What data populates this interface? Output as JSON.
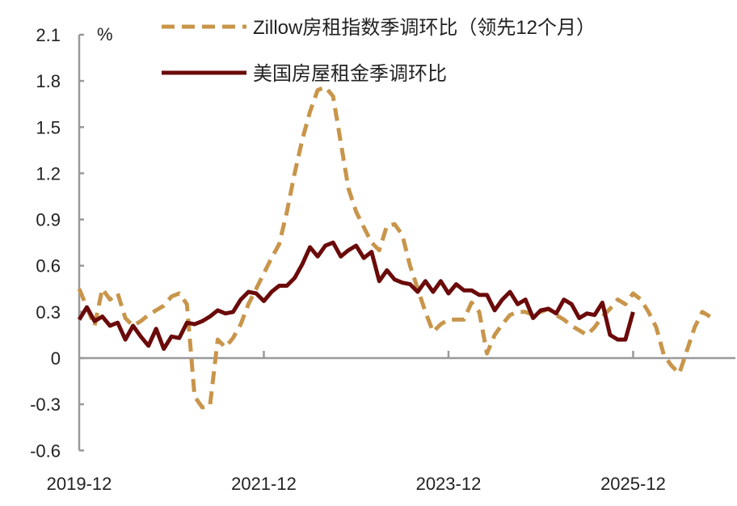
{
  "chart_data": {
    "type": "line",
    "unit_label": "%",
    "ylim": [
      -0.6,
      2.1
    ],
    "yticks": [
      "2.1",
      "1.8",
      "1.5",
      "1.2",
      "0.9",
      "0.6",
      "0.3",
      "0",
      "-0.3",
      "-0.6"
    ],
    "ytick_values": [
      2.1,
      1.8,
      1.5,
      1.2,
      0.9,
      0.6,
      0.3,
      0,
      -0.3,
      -0.6
    ],
    "xticks": [
      "2019-12",
      "2021-12",
      "2023-12",
      "2025-12"
    ],
    "x_start": "2019-12",
    "x_frequency": "monthly",
    "grid": false,
    "legend_placement": "top",
    "series": [
      {
        "name": "Zillow房租指数季调环比（领先12个月）",
        "style": "dashed",
        "color": "#C8954A",
        "values": [
          0.45,
          0.33,
          0.21,
          0.45,
          0.38,
          0.42,
          0.26,
          0.21,
          0.24,
          0.28,
          0.31,
          0.34,
          0.4,
          0.42,
          0.35,
          -0.25,
          -0.32,
          -0.31,
          0.12,
          0.07,
          0.13,
          0.22,
          0.35,
          0.45,
          0.55,
          0.65,
          0.74,
          0.95,
          1.2,
          1.42,
          1.6,
          1.74,
          1.76,
          1.7,
          1.4,
          1.1,
          0.95,
          0.85,
          0.75,
          0.7,
          0.86,
          0.87,
          0.8,
          0.6,
          0.45,
          0.3,
          0.17,
          0.22,
          0.25,
          0.25,
          0.25,
          0.36,
          0.3,
          0.03,
          0.15,
          0.22,
          0.28,
          0.3,
          0.3,
          0.28,
          0.3,
          0.32,
          0.28,
          0.25,
          0.21,
          0.18,
          0.15,
          0.2,
          0.27,
          0.32,
          0.38,
          0.35,
          0.42,
          0.38,
          0.3,
          0.2,
          0.02,
          -0.05,
          -0.1,
          0.05,
          0.2,
          0.3,
          0.27
        ]
      },
      {
        "name": "美国房屋租金季调环比",
        "style": "solid",
        "color": "#6B0A0A",
        "values": [
          0.25,
          0.33,
          0.24,
          0.27,
          0.21,
          0.23,
          0.12,
          0.21,
          0.14,
          0.08,
          0.19,
          0.06,
          0.14,
          0.13,
          0.23,
          0.22,
          0.24,
          0.27,
          0.31,
          0.29,
          0.3,
          0.38,
          0.43,
          0.42,
          0.37,
          0.43,
          0.47,
          0.47,
          0.52,
          0.61,
          0.72,
          0.66,
          0.73,
          0.75,
          0.66,
          0.7,
          0.73,
          0.65,
          0.69,
          0.5,
          0.57,
          0.51,
          0.49,
          0.48,
          0.43,
          0.5,
          0.43,
          0.5,
          0.42,
          0.48,
          0.44,
          0.44,
          0.41,
          0.41,
          0.31,
          0.38,
          0.43,
          0.35,
          0.38,
          0.26,
          0.31,
          0.32,
          0.29,
          0.38,
          0.35,
          0.26,
          0.29,
          0.28,
          0.36,
          0.15,
          0.12,
          0.12,
          0.3
        ]
      }
    ]
  }
}
